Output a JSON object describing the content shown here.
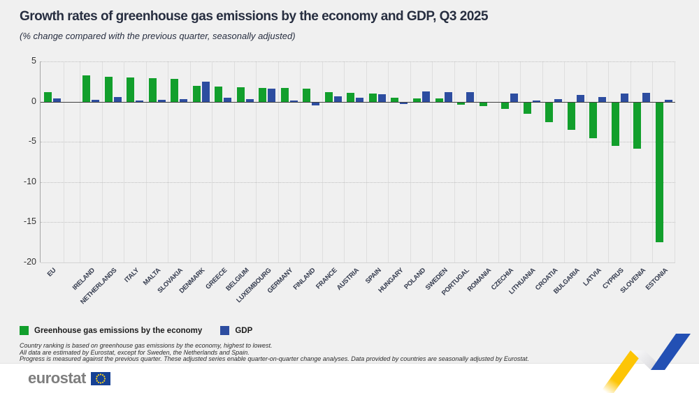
{
  "title": "Growth rates of greenhouse gas emissions by the economy and GDP, Q3 2025",
  "subtitle": "(% change compared with the previous quarter, seasonally adjusted)",
  "legend": {
    "emissions_label": "Greenhouse gas emissions by the economy",
    "gdp_label": "GDP"
  },
  "footnotes": [
    "Country ranking is based on greenhouse gas emissions by the economy, highest to lowest.",
    "All data are estimated by Eurostat, except for Sweden, the Netherlands and Spain.",
    "Progress is measured against the previous quarter. These adjusted series enable quarter-on-quarter change analyses. Data provided by countries are seasonally adjusted by Eurostat."
  ],
  "footer": {
    "logo_text": "eurostat"
  },
  "colors": {
    "background": "#f0f0f0",
    "emissions": "#129f2c",
    "gdp": "#2d4da0",
    "ribbon_yellow": "#fdc506",
    "ribbon_blue": "#2350b4",
    "flag_blue": "#164194",
    "flag_stars": "#ffd617"
  },
  "chart_data": {
    "type": "bar",
    "title": "Growth rates of greenhouse gas emissions by the economy and GDP, Q3 2025",
    "subtitle": "(% change compared with the previous quarter, seasonally adjusted)",
    "unit": "% change on previous quarter, seasonally adjusted",
    "categories": [
      "EU",
      "Ireland",
      "Netherlands",
      "Italy",
      "Malta",
      "Slovakia",
      "Denmark",
      "Greece",
      "Belgium",
      "Luxembourg",
      "Germany",
      "Finland",
      "France",
      "Austria",
      "Spain",
      "Hungary",
      "Poland",
      "Sweden",
      "Portugal",
      "Romania",
      "Czechia",
      "Lithuania",
      "Croatia",
      "Bulgaria",
      "Latvia",
      "Cyprus",
      "Slovenia",
      "Estonia"
    ],
    "series": [
      {
        "name": "Greenhouse gas emissions by the economy",
        "color": "#129f2c",
        "values": [
          1.2,
          3.3,
          3.1,
          3.0,
          2.9,
          2.8,
          2.0,
          1.9,
          1.8,
          1.7,
          1.7,
          1.6,
          1.2,
          1.1,
          1.0,
          0.5,
          0.4,
          0.4,
          -0.3,
          -0.5,
          -0.8,
          -1.4,
          -2.5,
          -3.4,
          -4.5,
          -5.4,
          -5.8,
          -17.4
        ]
      },
      {
        "name": "GDP",
        "color": "#2d4da0",
        "values": [
          0.4,
          0.2,
          0.6,
          0.1,
          0.2,
          0.3,
          2.5,
          0.5,
          0.3,
          1.6,
          0.1,
          -0.4,
          0.7,
          0.5,
          0.9,
          -0.2,
          1.3,
          1.2,
          1.2,
          0.0,
          1.0,
          0.1,
          0.3,
          0.8,
          0.6,
          1.0,
          1.1,
          0.2
        ]
      }
    ],
    "ylim": [
      -20,
      5
    ],
    "yticks": [
      5,
      0,
      -5,
      -10,
      -15,
      -20
    ],
    "grid": "horizontal-dotted",
    "legend_position": "bottom-left",
    "separator_after_first": true
  }
}
